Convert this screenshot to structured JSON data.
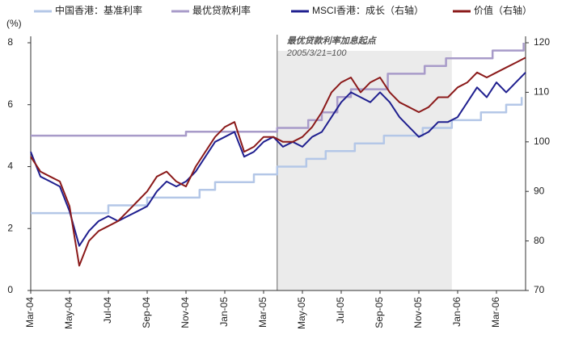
{
  "chart_data": {
    "type": "line",
    "left_axis_label": "(%)",
    "annotation": [
      "最优贷款利率加息起点",
      "2005/3/21=100"
    ],
    "highlight": {
      "x": [
        12.7,
        21.7
      ],
      "color": "#ebebeb"
    },
    "xlim": [
      0,
      25.5
    ],
    "xticks": [
      {
        "value": 0,
        "label": "Mar-04"
      },
      {
        "value": 2,
        "label": "May-04"
      },
      {
        "value": 4,
        "label": "Jul-04"
      },
      {
        "value": 6,
        "label": "Sep-04"
      },
      {
        "value": 8,
        "label": "Nov-04"
      },
      {
        "value": 10,
        "label": "Jan-05"
      },
      {
        "value": 12,
        "label": "Mar-05"
      },
      {
        "value": 14,
        "label": "May-05"
      },
      {
        "value": 16,
        "label": "Jul-05"
      },
      {
        "value": 18,
        "label": "Sep-05"
      },
      {
        "value": 20,
        "label": "Nov-05"
      },
      {
        "value": 22,
        "label": "Jan-06"
      },
      {
        "value": 24,
        "label": "Mar-06"
      }
    ],
    "ylim": [
      0,
      8
    ],
    "yticks": [
      0,
      2,
      4,
      6,
      8
    ],
    "y2lim": [
      70,
      120
    ],
    "y2ticks": [
      70,
      80,
      90,
      100,
      110,
      120
    ],
    "series": [
      {
        "name": "中国香港：基准利率",
        "color": "#b4c7e7",
        "width": 2.5,
        "x": [
          0,
          4,
          4,
          6,
          6,
          8.7,
          8.7,
          9.5,
          9.5,
          11.5,
          11.5,
          12.7,
          12.7,
          14.2,
          14.2,
          15.2,
          15.2,
          16.7,
          16.7,
          18.2,
          18.2,
          20.2,
          20.2,
          21.7,
          21.7,
          23.2,
          23.2,
          24.5,
          24.5,
          25.3,
          25.3
        ],
        "values": [
          2.5,
          2.5,
          2.75,
          2.75,
          3.0,
          3.0,
          3.25,
          3.25,
          3.5,
          3.5,
          3.75,
          3.75,
          4.0,
          4.0,
          4.25,
          4.25,
          4.5,
          4.5,
          4.75,
          4.75,
          5.0,
          5.0,
          5.25,
          5.25,
          5.5,
          5.5,
          5.75,
          5.75,
          6.0,
          6.0,
          6.25
        ]
      },
      {
        "name": "最优贷款利率",
        "color": "#a89bc9",
        "width": 2.5,
        "x": [
          0,
          8.0,
          8.0,
          12.7,
          12.7,
          14.3,
          14.3,
          15.0,
          15.0,
          15.8,
          15.8,
          16.5,
          16.5,
          18.4,
          18.4,
          20.3,
          20.3,
          21.4,
          21.4,
          23.8,
          23.8,
          25.4,
          25.4
        ],
        "values": [
          5.0,
          5.0,
          5.125,
          5.125,
          5.25,
          5.25,
          5.5,
          5.5,
          5.75,
          5.75,
          6.25,
          6.25,
          6.5,
          6.5,
          7.0,
          7.0,
          7.25,
          7.25,
          7.5,
          7.5,
          7.75,
          7.75,
          8.0
        ]
      },
      {
        "name": "MSCI香港：成长（右轴）",
        "color": "#1f1f8f",
        "width": 2,
        "axis": "y2",
        "x": [
          0,
          0.5,
          1,
          1.5,
          2,
          2.5,
          3,
          3.5,
          4,
          4.5,
          5,
          5.5,
          6,
          6.5,
          7,
          7.5,
          8,
          8.5,
          9,
          9.5,
          10,
          10.5,
          11,
          11.5,
          12,
          12.5,
          13,
          13.5,
          14,
          14.5,
          15,
          15.5,
          16,
          16.5,
          17,
          17.5,
          18,
          18.5,
          19,
          19.5,
          20,
          20.5,
          21,
          21.5,
          22,
          22.5,
          23,
          23.5,
          24,
          24.5,
          25,
          25.5
        ],
        "values": [
          98,
          93,
          92,
          91,
          86,
          79,
          82,
          84,
          85,
          84,
          85,
          86,
          87,
          90,
          92,
          91,
          92,
          94,
          97,
          100,
          101,
          102,
          97,
          98,
          100,
          101,
          99,
          100,
          99,
          101,
          102,
          105,
          108,
          110,
          109,
          108,
          110,
          108,
          105,
          103,
          101,
          102,
          104,
          104,
          105,
          108,
          111,
          109,
          112,
          110,
          112,
          114
        ]
      },
      {
        "name": "价值（右轴）",
        "color": "#8b1a1a",
        "width": 2,
        "axis": "y2",
        "x": [
          0,
          0.5,
          1,
          1.5,
          2,
          2.5,
          3,
          3.5,
          4,
          4.5,
          5,
          5.5,
          6,
          6.5,
          7,
          7.5,
          8,
          8.5,
          9,
          9.5,
          10,
          10.5,
          11,
          11.5,
          12,
          12.5,
          13,
          13.5,
          14,
          14.5,
          15,
          15.5,
          16,
          16.5,
          17,
          17.5,
          18,
          18.5,
          19,
          19.5,
          20,
          20.5,
          21,
          21.5,
          22,
          22.5,
          23,
          23.5,
          24,
          24.5,
          25,
          25.5
        ],
        "values": [
          97,
          94,
          93,
          92,
          87,
          75,
          80,
          82,
          83,
          84,
          86,
          88,
          90,
          93,
          94,
          92,
          91,
          95,
          98,
          101,
          103,
          104,
          98,
          99,
          101,
          101,
          100,
          100,
          101,
          103,
          106,
          110,
          112,
          113,
          110,
          112,
          113,
          110,
          108,
          107,
          106,
          107,
          109,
          109,
          111,
          112,
          114,
          113,
          114,
          115,
          116,
          117
        ]
      }
    ]
  }
}
